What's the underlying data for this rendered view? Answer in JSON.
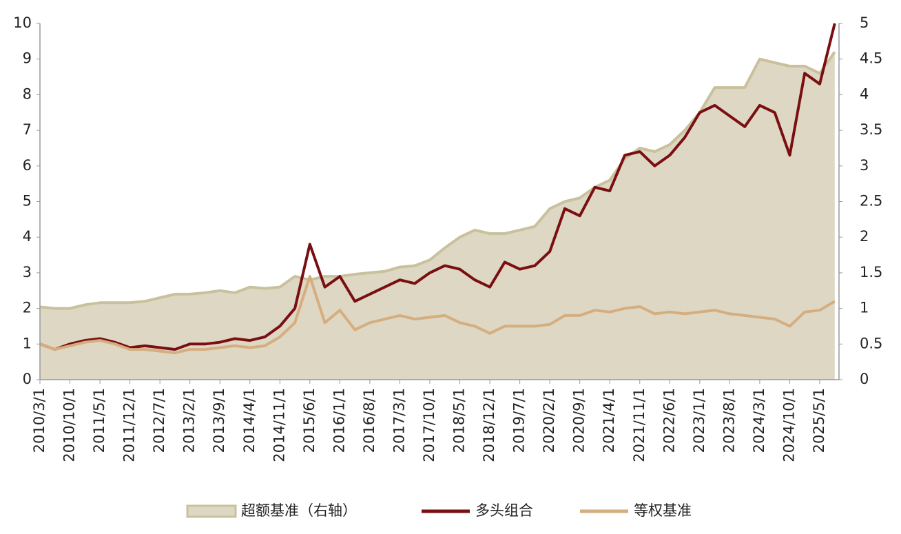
{
  "chart_data": {
    "type": "line",
    "categories": [
      "2010/3/1",
      null,
      "2010/10/1",
      null,
      "2011/5/1",
      null,
      "2011/12/1",
      null,
      "2012/7/1",
      null,
      "2013/2/1",
      null,
      "2013/9/1",
      null,
      "2014/4/1",
      null,
      "2014/11/1",
      null,
      "2015/6/1",
      null,
      "2016/1/1",
      null,
      "2016/8/1",
      null,
      "2017/3/1",
      null,
      "2017/10/1",
      null,
      "2018/5/1",
      null,
      "2018/12/1",
      null,
      "2019/7/1",
      null,
      "2020/2/1",
      null,
      "2020/9/1",
      null,
      "2021/4/1",
      null,
      "2021/11/1",
      null,
      "2022/6/1",
      null,
      "2023/1/1",
      null,
      "2023/8/1",
      null,
      "2024/3/1",
      null,
      "2024/10/1",
      null,
      "2025/5/1",
      null
    ],
    "series": [
      {
        "name": "超额基准（右轴）",
        "color": "#c9c19c",
        "fill": "#ded7c4",
        "axis": "y2",
        "kind": "area",
        "values": [
          1.02,
          1.0,
          1.0,
          1.05,
          1.08,
          1.08,
          1.08,
          1.1,
          1.15,
          1.2,
          1.2,
          1.22,
          1.25,
          1.22,
          1.3,
          1.28,
          1.3,
          1.45,
          1.4,
          1.45,
          1.45,
          1.48,
          1.5,
          1.52,
          1.58,
          1.6,
          1.68,
          1.85,
          2.0,
          2.1,
          2.05,
          2.05,
          2.1,
          2.15,
          2.4,
          2.5,
          2.55,
          2.7,
          2.8,
          3.1,
          3.25,
          3.2,
          3.3,
          3.5,
          3.75,
          4.1,
          4.1,
          4.1,
          4.5,
          4.45,
          4.4,
          4.4,
          4.3,
          4.6
        ]
      },
      {
        "name": "多头组合",
        "color": "#7a0f12",
        "kind": "line",
        "values": [
          1.0,
          0.85,
          1.0,
          1.1,
          1.15,
          1.05,
          0.9,
          0.95,
          0.9,
          0.85,
          1.0,
          1.0,
          1.05,
          1.15,
          1.1,
          1.2,
          1.5,
          2.0,
          3.8,
          2.6,
          2.9,
          2.2,
          2.4,
          2.6,
          2.8,
          2.7,
          3.0,
          3.2,
          3.1,
          2.8,
          2.6,
          3.3,
          3.1,
          3.2,
          3.6,
          4.8,
          4.6,
          5.4,
          5.3,
          6.3,
          6.4,
          6.0,
          6.3,
          6.8,
          7.5,
          7.7,
          7.4,
          7.1,
          7.7,
          7.5,
          6.3,
          8.6,
          8.3,
          10
        ]
      },
      {
        "name": "等权基准",
        "color": "#d5ae80",
        "kind": "line",
        "values": [
          1.0,
          0.85,
          0.95,
          1.05,
          1.1,
          1.0,
          0.85,
          0.85,
          0.8,
          0.75,
          0.85,
          0.85,
          0.9,
          0.95,
          0.9,
          0.95,
          1.2,
          1.6,
          2.9,
          1.6,
          1.95,
          1.4,
          1.6,
          1.7,
          1.8,
          1.7,
          1.75,
          1.8,
          1.6,
          1.5,
          1.3,
          1.5,
          1.5,
          1.5,
          1.55,
          1.8,
          1.8,
          1.95,
          1.9,
          2.0,
          2.05,
          1.85,
          1.9,
          1.85,
          1.9,
          1.95,
          1.85,
          1.8,
          1.75,
          1.7,
          1.5,
          1.9,
          1.95,
          2.2
        ]
      }
    ],
    "ylim": [
      0,
      10
    ],
    "yticks": [
      0,
      1,
      2,
      3,
      4,
      5,
      6,
      7,
      8,
      9,
      10
    ],
    "y2lim": [
      0,
      5
    ],
    "y2ticks": [
      0,
      0.5,
      1,
      1.5,
      2,
      2.5,
      3,
      3.5,
      4,
      4.5,
      5
    ],
    "legend": "bottom"
  }
}
